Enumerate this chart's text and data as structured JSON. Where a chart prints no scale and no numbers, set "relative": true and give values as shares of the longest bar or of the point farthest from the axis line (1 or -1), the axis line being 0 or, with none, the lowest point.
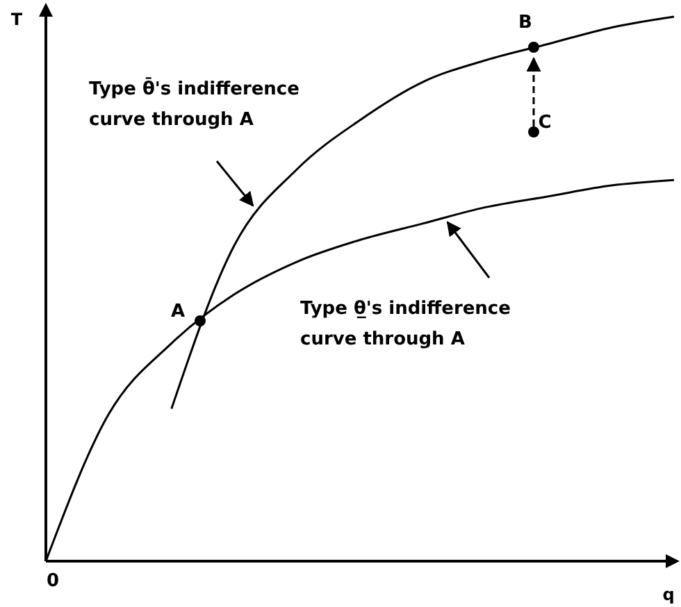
{
  "chart_data": {
    "type": "line",
    "relative": true,
    "xlabel": "q",
    "ylabel": "T",
    "categories": [
      null,
      null,
      null,
      null,
      null,
      null,
      null,
      null,
      null,
      null,
      null
    ],
    "series": [
      {
        "name": "Type θ̄'s indifference curve through A",
        "color": "#000000",
        "values": [
          null,
          null,
          0.28,
          0.58,
          0.72,
          0.81,
          0.88,
          0.92,
          0.95,
          0.98,
          1.0
        ]
      },
      {
        "name": "Type θ̲'s indifference curve through A",
        "color": "#000000",
        "values": [
          0,
          0.27,
          0.4,
          0.49,
          0.55,
          0.59,
          0.62,
          0.65,
          0.67,
          0.69,
          0.7
        ]
      }
    ],
    "annotations": [
      "A",
      "B",
      "C",
      "0"
    ],
    "grid": false,
    "legend": false,
    "marker": "none",
    "line_style": "solid"
  }
}
